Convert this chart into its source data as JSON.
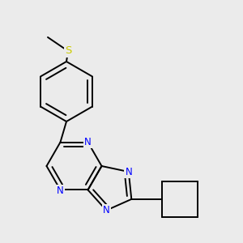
{
  "background_color": "#ebebeb",
  "bond_color": "#000000",
  "bond_width": 1.4,
  "atom_colors": {
    "N": "#0000ff",
    "S": "#cccc00",
    "C": "#000000"
  },
  "font_size_atom": 8.5,
  "figsize": [
    3.0,
    3.0
  ],
  "dpi": 100
}
